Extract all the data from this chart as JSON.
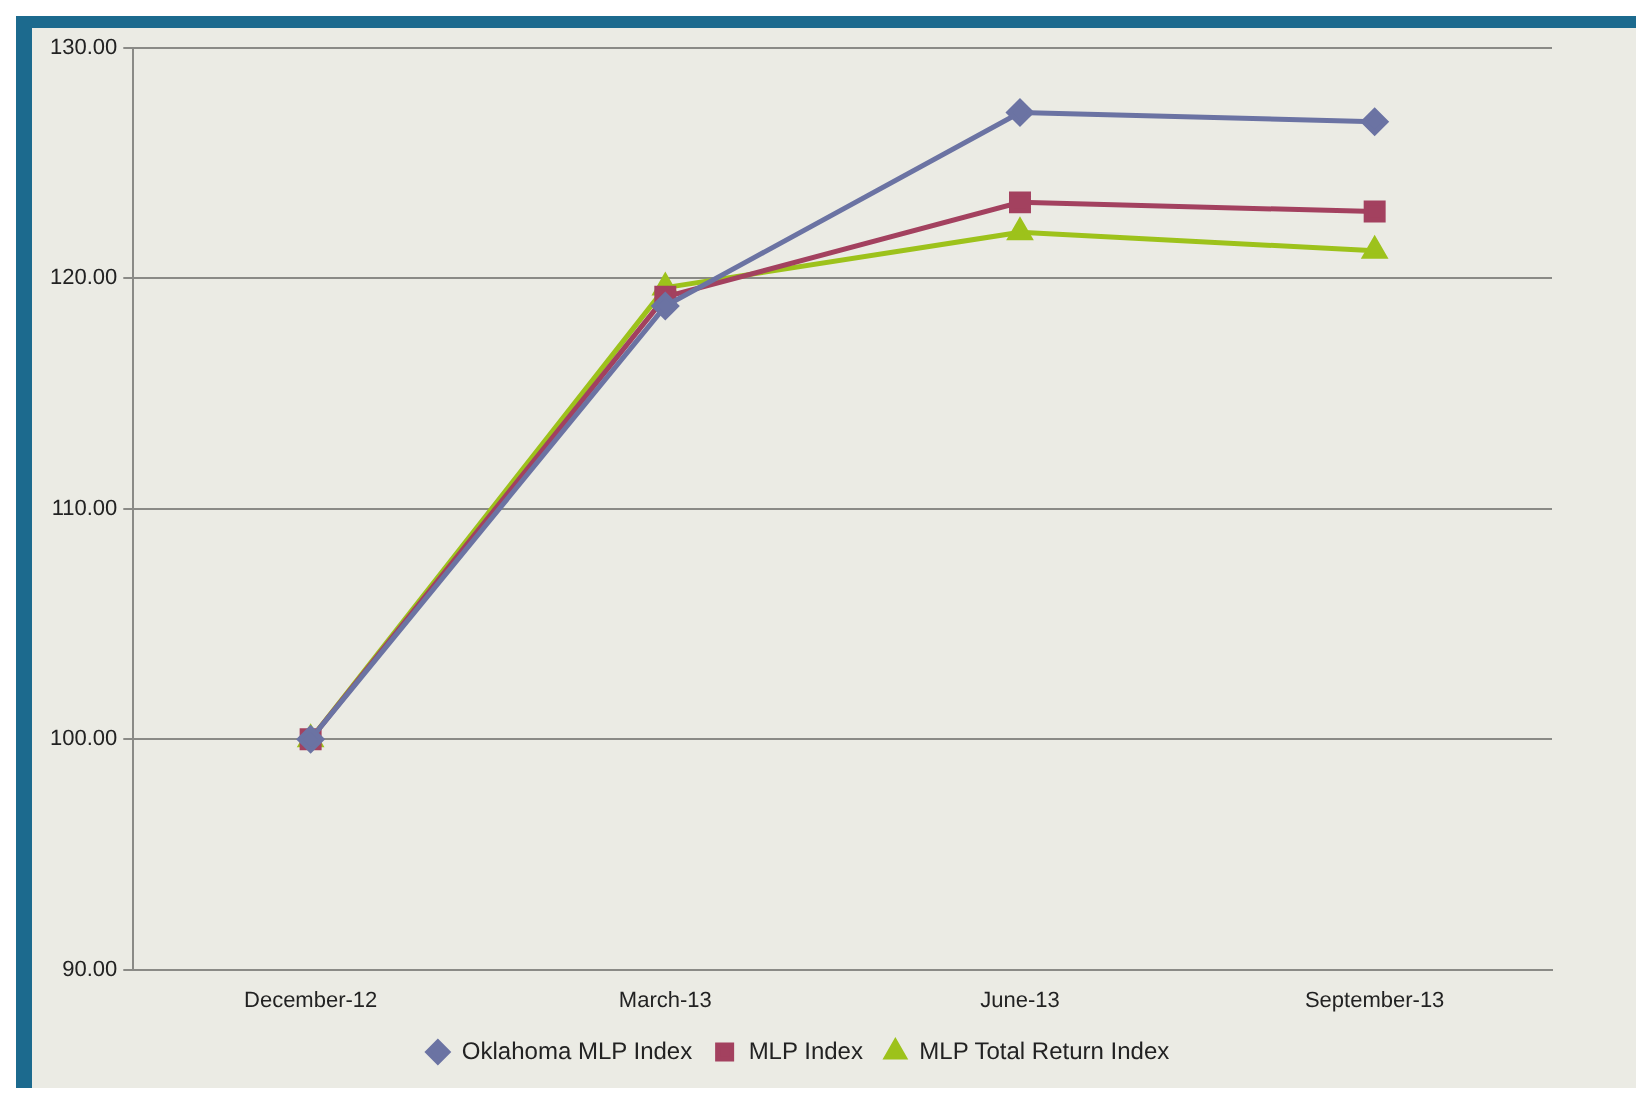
{
  "chart_data": {
    "type": "line",
    "categories": [
      "December-12",
      "March-13",
      "June-13",
      "September-13"
    ],
    "series": [
      {
        "name": "Oklahoma MLP Index",
        "color": "#6b73a3",
        "marker": "diamond",
        "values": [
          100,
          118.8,
          127.2,
          126.8
        ]
      },
      {
        "name": "MLP Index",
        "color": "#a3415f",
        "marker": "square",
        "values": [
          100,
          119.2,
          123.3,
          122.9
        ]
      },
      {
        "name": "MLP Total Return Index",
        "color": "#9dc21b",
        "marker": "triangle",
        "values": [
          100,
          119.6,
          122.0,
          121.2
        ]
      }
    ],
    "ylim": [
      90,
      130
    ],
    "yticks": [
      {
        "value": 90,
        "label": "90.00"
      },
      {
        "value": 100,
        "label": "100.00"
      },
      {
        "value": 110,
        "label": "110.00"
      },
      {
        "value": 120,
        "label": "120.00"
      },
      {
        "value": 130,
        "label": "130.00"
      }
    ],
    "grid": "y",
    "legend": "bottom"
  }
}
